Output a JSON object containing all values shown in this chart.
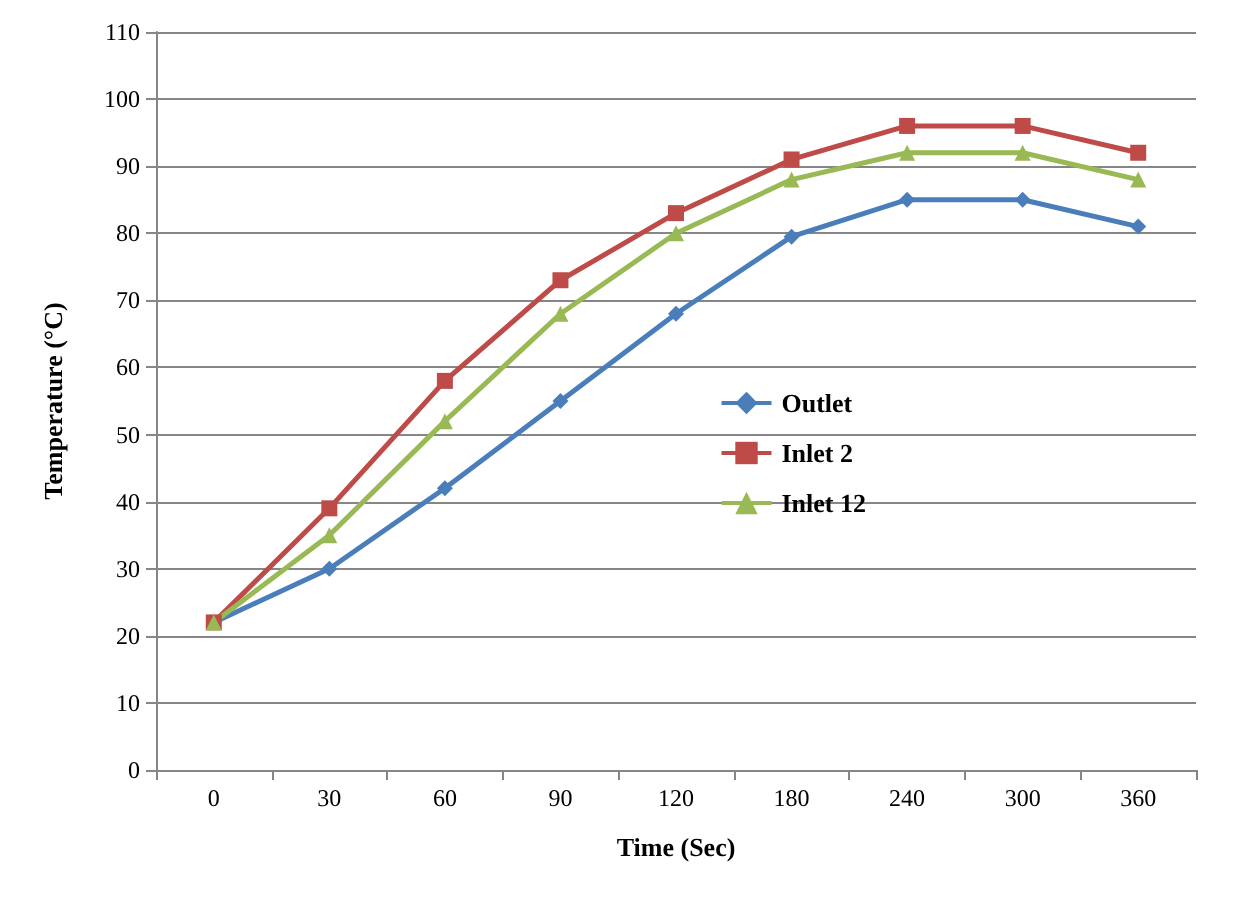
{
  "chart_data": {
    "type": "line",
    "xlabel": "Time (Sec)",
    "ylabel": "Temperature (°C)",
    "categories": [
      "0",
      "30",
      "60",
      "90",
      "120",
      "180",
      "240",
      "300",
      "360"
    ],
    "series": [
      {
        "name": "Outlet",
        "color": "#4a7ebb",
        "marker": "diamond",
        "values": [
          22,
          30,
          42,
          55,
          68,
          79.5,
          85,
          85,
          81
        ]
      },
      {
        "name": "Inlet 2",
        "color": "#be4b48",
        "marker": "square",
        "values": [
          22,
          39,
          58,
          73,
          83,
          91,
          96,
          96,
          92
        ]
      },
      {
        "name": "Inlet 12",
        "color": "#98b954",
        "marker": "triangle",
        "values": [
          22,
          35,
          52,
          68,
          80,
          88,
          92,
          92,
          88
        ]
      }
    ],
    "ylim": [
      0,
      110
    ],
    "yticks": [
      0,
      10,
      20,
      30,
      40,
      50,
      60,
      70,
      80,
      90,
      100,
      110
    ],
    "grid": "y",
    "legend": "right"
  }
}
